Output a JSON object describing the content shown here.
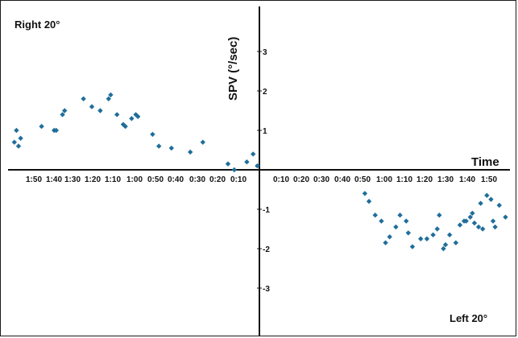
{
  "chart_data": {
    "type": "scatter",
    "marker_color": "#1f6e9a",
    "ylabel": "SPV (°/sec)",
    "xlabel": "Time",
    "ylim": [
      -4,
      4
    ],
    "annotations": {
      "left_label": "Right 20°",
      "right_label": "Left 20°"
    },
    "x_tick_labels_left": [
      "1:50",
      "1:40",
      "1:30",
      "1:20",
      "1:10",
      "1:00",
      "0:50",
      "0:40",
      "0:30",
      "0:20",
      "0:10"
    ],
    "x_tick_labels_right": [
      "0:10",
      "0:20",
      "0:30",
      "0:40",
      "0:50",
      "1:00",
      "1:10",
      "1:20",
      "1:30",
      "1:40",
      "1:50"
    ],
    "y_tick_labels": [
      "3",
      "2",
      "1",
      "-1",
      "-2",
      "-3"
    ],
    "series": [
      {
        "panel": "Right 20°",
        "x_seconds_elapsed": [
          117,
          116,
          115,
          114,
          104,
          98,
          97,
          94,
          93,
          84,
          80,
          76,
          72,
          71,
          68,
          65,
          64,
          61,
          59,
          58,
          51,
          48,
          42,
          33,
          27,
          15,
          12,
          6,
          3,
          1
        ],
        "y": [
          0.7,
          1.0,
          0.6,
          0.8,
          1.1,
          1.0,
          1.0,
          1.4,
          1.5,
          1.8,
          1.6,
          1.5,
          1.8,
          1.9,
          1.4,
          1.15,
          1.1,
          1.3,
          1.4,
          1.35,
          0.9,
          0.6,
          0.55,
          0.45,
          0.7,
          0.15,
          0.0,
          0.2,
          0.4,
          0.1
        ]
      },
      {
        "panel": "Left 20°",
        "x_seconds_elapsed": [
          51,
          53,
          56,
          59,
          61,
          63,
          66,
          68,
          71,
          72,
          74,
          78,
          81,
          84,
          86,
          87,
          89,
          90,
          92,
          95,
          97,
          99,
          100,
          102,
          103,
          104,
          106,
          107,
          108,
          110,
          112,
          113,
          114,
          116,
          119
        ],
        "y": [
          -0.6,
          -0.8,
          -1.15,
          -1.3,
          -1.85,
          -1.7,
          -1.45,
          -1.15,
          -1.3,
          -1.6,
          -1.95,
          -1.75,
          -1.75,
          -1.65,
          -1.5,
          -1.15,
          -2.0,
          -1.9,
          -1.65,
          -1.85,
          -1.4,
          -1.3,
          -1.3,
          -1.2,
          -1.1,
          -1.35,
          -1.45,
          -0.85,
          -1.5,
          -0.65,
          -0.75,
          -1.3,
          -1.45,
          -0.9,
          -1.2
        ]
      }
    ]
  }
}
